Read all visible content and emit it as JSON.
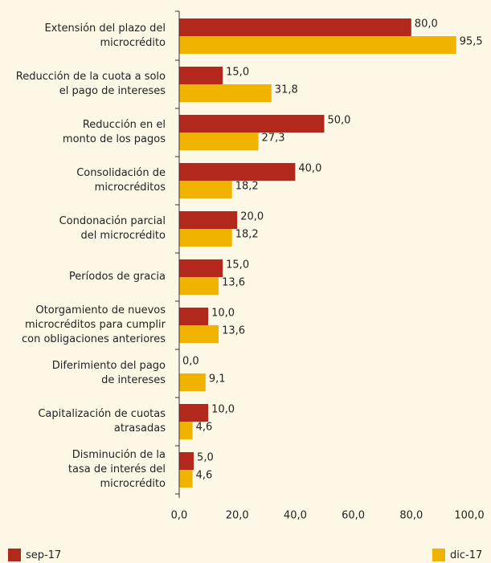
{
  "chart_data": {
    "type": "hbar",
    "categories": [
      "Extensión del plazo del\nmicrocrédito",
      "Reducción de la cuota a solo\nel pago de intereses",
      "Reducción en el\nmonto de los pagos",
      "Consolidación de\nmicrocréditos",
      "Condonación parcial\ndel microcrédito",
      "Períodos de gracia",
      "Otorgamiento de nuevos\nmicrocréditos para cumplir\ncon obligaciones anteriores",
      "Diferimiento del pago\nde intereses",
      "Capitalización de cuotas\natrasadas",
      "Disminución de la\ntasa de interés del\nmicrocrédito"
    ],
    "series": [
      {
        "name": "sep-17",
        "color": "#b3281d",
        "values": [
          80,
          15,
          50,
          40,
          20,
          15,
          10,
          0,
          10,
          5
        ],
        "value_labels": [
          "80,0",
          "15,0",
          "50,0",
          "40,0",
          "20,0",
          "15,0",
          "10,0",
          "0,0",
          "10,0",
          "5,0"
        ]
      },
      {
        "name": "dic-17",
        "color": "#f0b400",
        "values": [
          95.5,
          31.8,
          27.3,
          18.2,
          18.2,
          13.6,
          13.6,
          9.1,
          4.6,
          4.6
        ],
        "value_labels": [
          "95,5",
          "31,8",
          "27,3",
          "18,2",
          "18,2",
          "13,6",
          "13,6",
          "9,1",
          "4,6",
          "4,6"
        ]
      }
    ],
    "xlim": [
      0,
      100
    ],
    "xticks": [
      {
        "value": 0,
        "label": "0,0"
      },
      {
        "value": 20,
        "label": "20,0"
      },
      {
        "value": 40,
        "label": "40,0"
      },
      {
        "value": 60,
        "label": "60,0"
      },
      {
        "value": 80,
        "label": "80,0"
      },
      {
        "value": 100,
        "label": "100,0"
      }
    ],
    "legend": "bottom"
  }
}
